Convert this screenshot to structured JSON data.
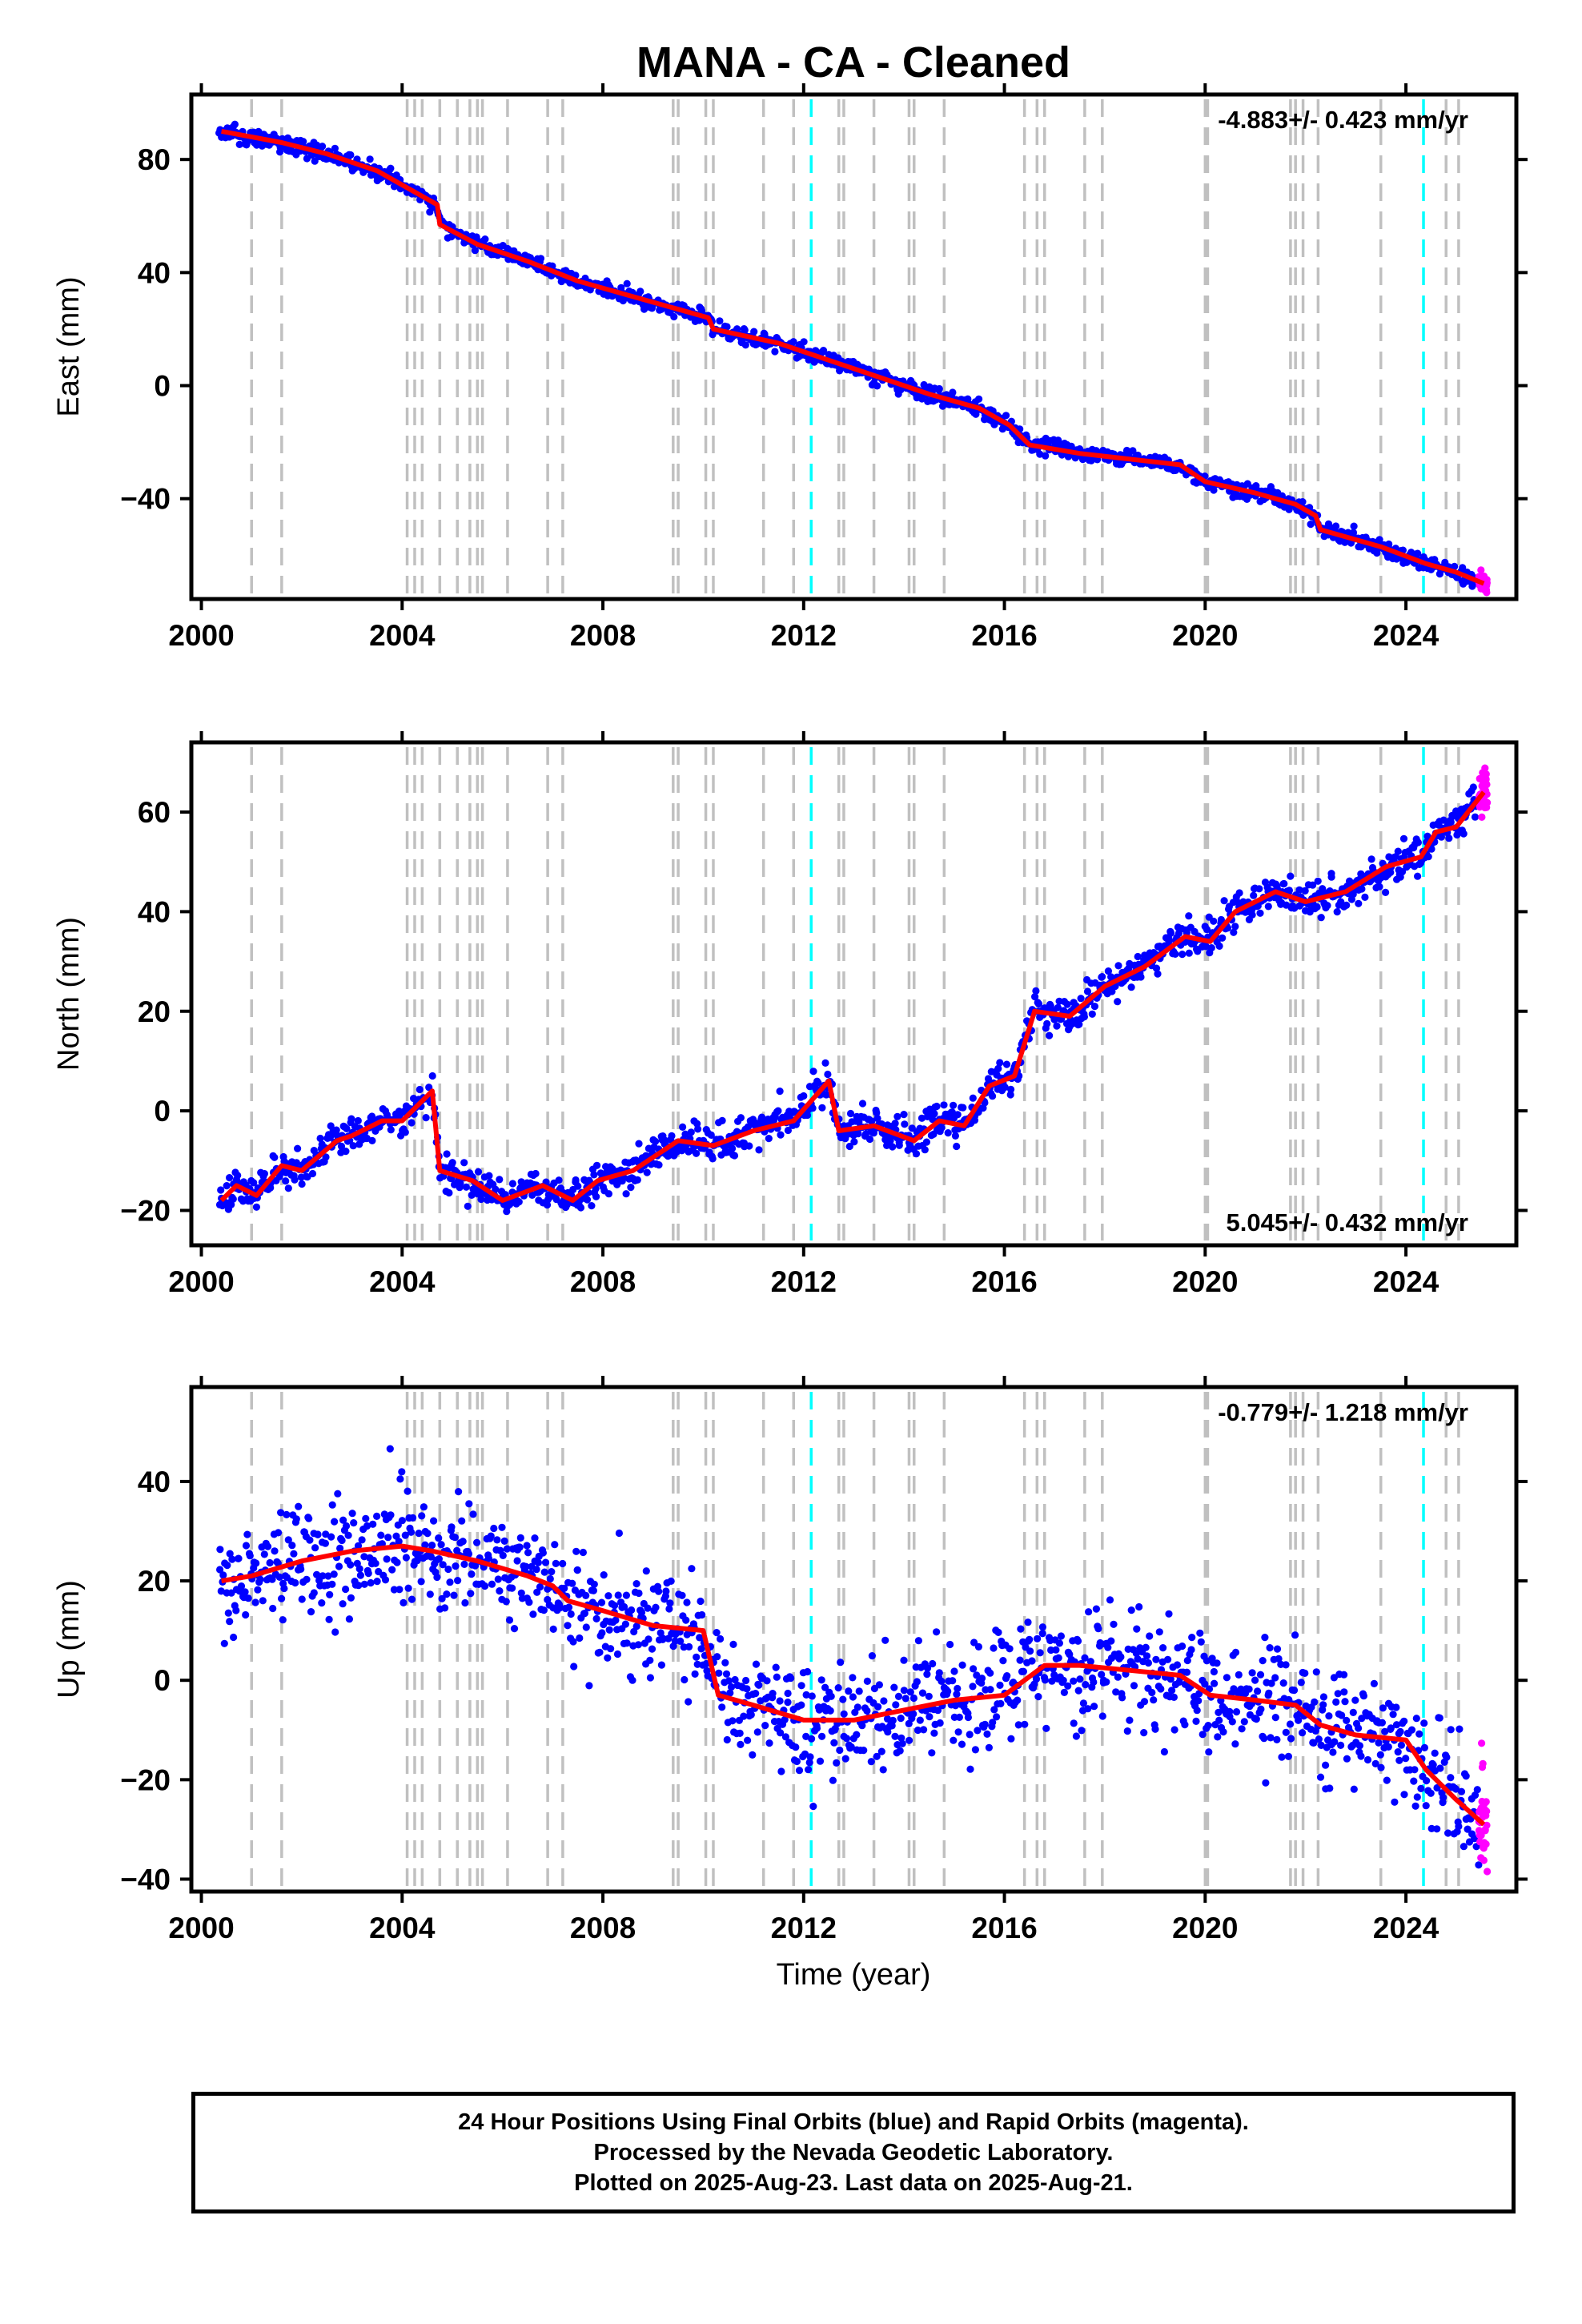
{
  "title": "MANA  - CA - Cleaned",
  "colors": {
    "final_points": "#0000ff",
    "rapid_points": "#ff00ff",
    "model_line": "#ff0000",
    "step_line": "#c0c0c0",
    "eq_line": "#00ffff"
  },
  "x_axis": {
    "label": "Time (year)",
    "range": [
      1999.8,
      2026.2
    ],
    "ticks": [
      2000,
      2004,
      2008,
      2012,
      2016,
      2020,
      2024
    ]
  },
  "step_lines": [
    2001.0,
    2001.6,
    2004.1,
    2004.25,
    2004.4,
    2004.75,
    2005.1,
    2005.35,
    2005.5,
    2005.6,
    2006.1,
    2006.9,
    2007.2,
    2009.4,
    2009.5,
    2010.05,
    2010.2,
    2011.2,
    2011.8,
    2012.7,
    2012.8,
    2013.4,
    2014.1,
    2014.2,
    2014.8,
    2016.4,
    2016.65,
    2016.8,
    2017.6,
    2017.95,
    2020.0,
    2020.05,
    2021.7,
    2021.8,
    2021.95,
    2022.25,
    2023.5,
    2024.8,
    2025.05
  ],
  "eq_lines": [
    2012.15,
    2024.35
  ],
  "chart_data": [
    {
      "type": "scatter",
      "component": "East",
      "ylabel": "East (mm)",
      "ylim": [
        -75.5,
        103
      ],
      "yticks": [
        80,
        40,
        0,
        -40
      ],
      "rate_label": "-4.883+/- 0.423 mm/yr",
      "rate_position": "top-right",
      "model_x": [
        2000.4,
        2001.0,
        2001.6,
        2002.5,
        2003.5,
        2004.1,
        2004.7,
        2004.75,
        2005.5,
        2006.5,
        2007.5,
        2008.5,
        2009.5,
        2010.1,
        2010.2,
        2011.5,
        2012.5,
        2013.5,
        2014.5,
        2015.5,
        2016.1,
        2016.5,
        2017.5,
        2018.5,
        2019.5,
        2020.0,
        2021.0,
        2021.8,
        2022.2,
        2022.3,
        2023.5,
        2024.4,
        2025.0,
        2025.55
      ],
      "model_y": [
        90,
        88,
        86,
        82,
        76,
        70,
        64,
        57,
        50,
        44,
        37,
        32,
        27,
        24,
        20,
        15,
        9,
        3,
        -3,
        -8,
        -14,
        -21,
        -24,
        -26,
        -28,
        -34,
        -38,
        -42,
        -46,
        -51,
        -57,
        -63,
        -66,
        -70
      ],
      "series": [
        {
          "name": "Final Orbits",
          "x_range": [
            2000.35,
            2025.45
          ],
          "noise_sd": 1.4,
          "n": 1300
        },
        {
          "name": "Rapid Orbits",
          "x_range": [
            2025.45,
            2025.62
          ],
          "noise_sd": 1.6,
          "n": 40
        }
      ]
    },
    {
      "type": "scatter",
      "component": "North",
      "ylabel": "North (mm)",
      "ylim": [
        -27,
        74
      ],
      "yticks": [
        60,
        40,
        20,
        0,
        -20
      ],
      "rate_label": "5.045+/- 0.432 mm/yr",
      "rate_position": "bottom-right",
      "model_x": [
        2000.4,
        2000.7,
        2001.1,
        2001.6,
        2002.0,
        2002.7,
        2003.0,
        2003.6,
        2004.0,
        2004.6,
        2004.75,
        2005.4,
        2006.0,
        2006.8,
        2007.4,
        2007.9,
        2008.6,
        2009.5,
        2010.2,
        2011.0,
        2011.8,
        2012.5,
        2012.7,
        2013.4,
        2014.2,
        2014.7,
        2015.2,
        2015.7,
        2016.2,
        2016.6,
        2017.3,
        2018.0,
        2018.8,
        2019.6,
        2020.1,
        2020.6,
        2021.4,
        2022.0,
        2022.8,
        2023.6,
        2024.3,
        2024.6,
        2025.0,
        2025.55
      ],
      "model_y": [
        -18,
        -15,
        -17,
        -11,
        -12,
        -6,
        -5,
        -2,
        -2,
        4,
        -12,
        -14,
        -18,
        -15,
        -18,
        -14,
        -12,
        -6,
        -7,
        -4,
        -2,
        6,
        -4,
        -3,
        -6,
        -2,
        -3,
        5,
        7,
        20,
        19,
        25,
        29,
        35,
        34,
        40,
        44,
        42,
        44,
        49,
        51,
        56,
        57,
        64
      ],
      "series": [
        {
          "name": "Final Orbits",
          "x_range": [
            2000.35,
            2025.45
          ],
          "noise_sd": 1.8,
          "n": 1300
        },
        {
          "name": "Rapid Orbits",
          "x_range": [
            2025.45,
            2025.62
          ],
          "noise_sd": 2.0,
          "n": 40
        }
      ]
    },
    {
      "type": "scatter",
      "component": "Up",
      "ylabel": "Up (mm)",
      "ylim": [
        -42.5,
        59
      ],
      "yticks": [
        40,
        20,
        0,
        -20,
        -40
      ],
      "rate_label": "-0.779+/- 1.218 mm/yr",
      "rate_position": "top-right",
      "model_x": [
        2000.4,
        2001.0,
        2002.0,
        2003.0,
        2004.0,
        2004.6,
        2005.5,
        2006.5,
        2007.0,
        2007.3,
        2008.0,
        2009.0,
        2010.0,
        2010.3,
        2011.0,
        2012.0,
        2013.0,
        2014.0,
        2015.0,
        2016.0,
        2016.8,
        2017.5,
        2018.5,
        2019.5,
        2020.1,
        2021.0,
        2021.8,
        2022.3,
        2023.0,
        2024.0,
        2024.4,
        2025.0,
        2025.55
      ],
      "model_y": [
        20,
        21,
        24,
        26,
        27,
        26,
        24,
        21,
        19,
        16,
        14,
        11,
        10,
        -3,
        -5,
        -8,
        -8,
        -6,
        -4,
        -3,
        3,
        3,
        2,
        1,
        -3,
        -4,
        -5,
        -9,
        -11,
        -12,
        -18,
        -24,
        -29
      ],
      "series": [
        {
          "name": "Final Orbits",
          "x_range": [
            2000.35,
            2025.45
          ],
          "noise_sd": 5.5,
          "n": 1300
        },
        {
          "name": "Rapid Orbits",
          "x_range": [
            2025.45,
            2025.62
          ],
          "noise_sd": 6.0,
          "n": 30
        }
      ]
    }
  ],
  "footer": {
    "line1": "24 Hour Positions Using Final Orbits (blue) and Rapid Orbits (magenta).",
    "line2": "Processed by the Nevada Geodetic Laboratory.",
    "line3": "Plotted on 2025-Aug-23. Last data on 2025-Aug-21."
  }
}
